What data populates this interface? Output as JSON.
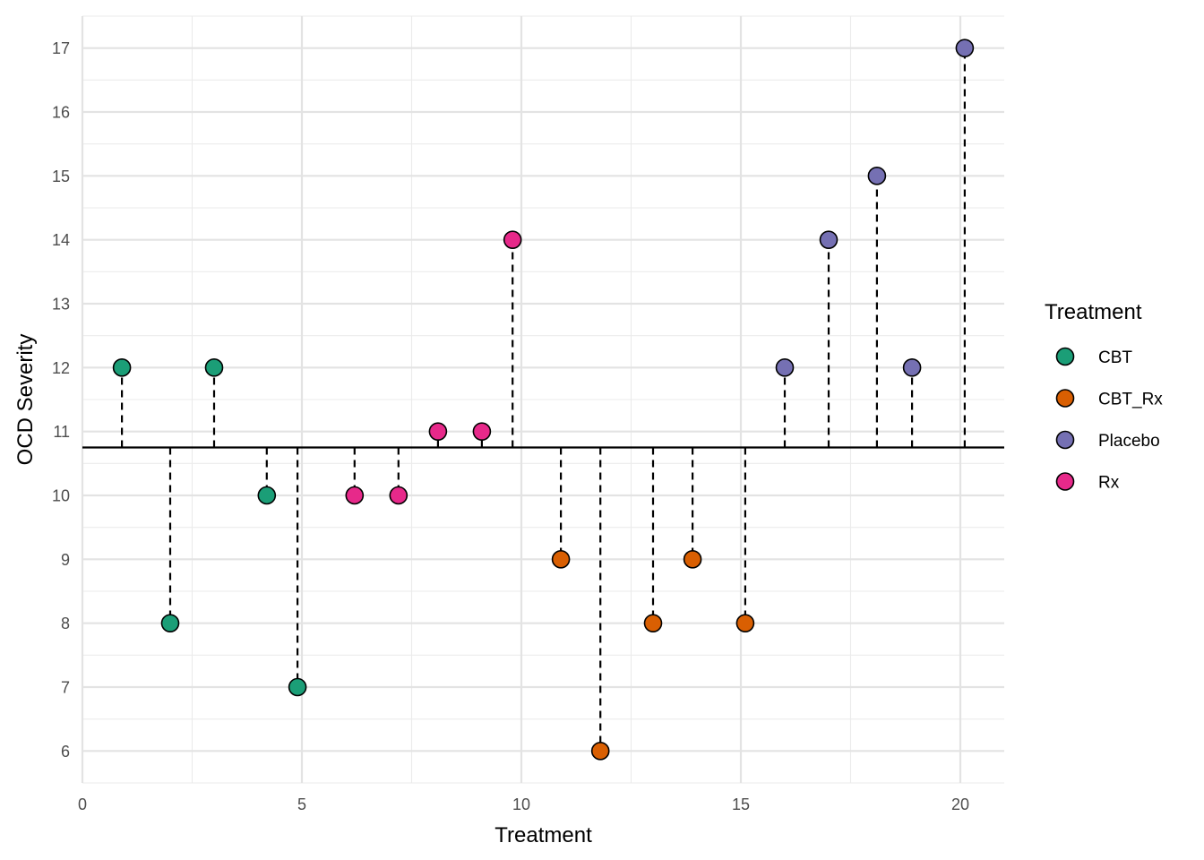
{
  "chart_data": {
    "type": "scatter",
    "xlabel": "Treatment",
    "ylabel": "OCD Severity",
    "xlim": [
      0,
      21
    ],
    "ylim": [
      5.5,
      17.5
    ],
    "x_ticks": [
      0,
      5,
      10,
      15,
      20
    ],
    "y_ticks": [
      6,
      7,
      8,
      9,
      10,
      11,
      12,
      13,
      14,
      15,
      16,
      17
    ],
    "x_tick_labels": [
      "0",
      "5",
      "10",
      "15",
      "20"
    ],
    "y_tick_labels": [
      "6",
      "7",
      "8",
      "9",
      "10",
      "11",
      "12",
      "13",
      "14",
      "15",
      "16",
      "17"
    ],
    "reference_line": 10.75,
    "grid": true,
    "legend": {
      "title": "Treatment",
      "position": "right",
      "entries": [
        "CBT",
        "CBT_Rx",
        "Placebo",
        "Rx"
      ]
    },
    "colors": {
      "CBT": "#1b9e77",
      "CBT_Rx": "#d95f02",
      "Placebo": "#7570b3",
      "Rx": "#e7298a"
    },
    "series": [
      {
        "name": "CBT",
        "x": [
          0.9,
          2.0,
          3.0,
          4.2,
          4.9
        ],
        "y": [
          12,
          8,
          12,
          10,
          7
        ]
      },
      {
        "name": "Rx",
        "x": [
          6.2,
          7.2,
          8.1,
          9.1,
          9.8
        ],
        "y": [
          10,
          10,
          11,
          11,
          14
        ]
      },
      {
        "name": "CBT_Rx",
        "x": [
          10.9,
          11.8,
          13.0,
          13.9,
          15.1
        ],
        "y": [
          9,
          6,
          8,
          9,
          8
        ]
      },
      {
        "name": "Placebo",
        "x": [
          16.0,
          17.0,
          18.1,
          18.9,
          20.1
        ],
        "y": [
          12,
          14,
          15,
          12,
          17
        ]
      }
    ]
  }
}
